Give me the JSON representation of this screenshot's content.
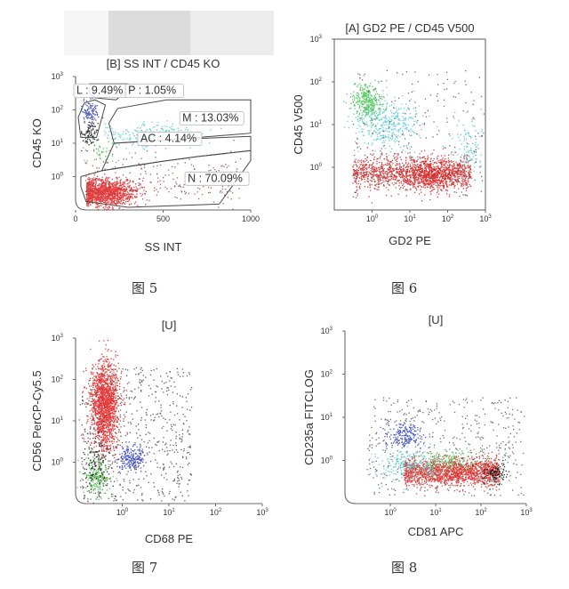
{
  "captions": [
    "图 5",
    "图 6",
    "图 7",
    "图 8"
  ],
  "chart_data": [
    {
      "type": "scatter",
      "title": "[B] SS INT / CD45 KO",
      "xlabel": "SS INT",
      "ylabel": "CD45 KO",
      "x_scale": "linear",
      "y_scale": "log",
      "xlim": [
        0,
        1000
      ],
      "ylim": [
        0.1,
        1000
      ],
      "x_ticks": [
        {
          "v": 0,
          "t": "0"
        },
        {
          "v": 500,
          "t": "500"
        },
        {
          "v": 1000,
          "t": "1000"
        }
      ],
      "y_ticks": [
        {
          "v": 1,
          "t": "10",
          "e": "0"
        },
        {
          "v": 10,
          "t": "10",
          "e": "1"
        },
        {
          "v": 100,
          "t": "10",
          "e": "2"
        },
        {
          "v": 1000,
          "t": "10",
          "e": "3"
        }
      ],
      "gate_labels": [
        {
          "text": "L : 9.49%",
          "x": 5,
          "y": 300
        },
        {
          "text": "P : 1.05%",
          "x": 300,
          "y": 300
        },
        {
          "text": "M : 13.03%",
          "x": 610,
          "y": 45
        },
        {
          "text": "AC : 4.14%",
          "x": 370,
          "y": 11
        },
        {
          "text": "N : 70.09%",
          "x": 640,
          "y": 0.7
        }
      ],
      "gates": [
        {
          "name": "L",
          "points": [
            [
              30,
              15
            ],
            [
              120,
              15
            ],
            [
              170,
              140
            ],
            [
              110,
              200
            ],
            [
              50,
              160
            ],
            [
              15,
              60
            ]
          ]
        },
        {
          "name": "P",
          "points": [
            [
              80,
              600
            ],
            [
              300,
              600
            ],
            [
              330,
              500
            ],
            [
              230,
              200
            ],
            [
              110,
              230
            ],
            [
              80,
              300
            ]
          ]
        },
        {
          "name": "M",
          "points": [
            [
              190,
              40
            ],
            [
              220,
              10
            ],
            [
              560,
              13
            ],
            [
              1000,
              20
            ],
            [
              1000,
              200
            ],
            [
              520,
              200
            ],
            [
              240,
              110
            ]
          ]
        },
        {
          "name": "AC",
          "points": [
            [
              150,
              1.5
            ],
            [
              480,
              2.8
            ],
            [
              700,
              4
            ],
            [
              1000,
              6
            ],
            [
              1000,
              16
            ],
            [
              560,
              13
            ],
            [
              220,
              10
            ]
          ]
        },
        {
          "name": "N",
          "points": [
            [
              30,
              1
            ],
            [
              30,
              0.5
            ],
            [
              60,
              0.18
            ],
            [
              300,
              0.12
            ],
            [
              820,
              0.15
            ],
            [
              1000,
              3
            ],
            [
              1000,
              6
            ],
            [
              700,
              4
            ],
            [
              480,
              2.8
            ],
            [
              150,
              1.5
            ]
          ]
        }
      ],
      "series": [
        {
          "color": "#e11d1d",
          "n": 1300,
          "x": {
            "d": "n",
            "m": 160,
            "s": 90
          },
          "y": {
            "d": "ln",
            "m": 0.35,
            "s": 0.45
          },
          "xmin": 60,
          "xmax": 900
        },
        {
          "color": "#47c5cf",
          "n": 220,
          "x": {
            "d": "n",
            "m": 420,
            "s": 130
          },
          "y": {
            "d": "ln",
            "m": 18,
            "s": 0.4
          },
          "xmin": 160,
          "xmax": 900
        },
        {
          "color": "#3444a8",
          "n": 120,
          "x": {
            "d": "n",
            "m": 80,
            "s": 25
          },
          "y": {
            "d": "ln",
            "m": 90,
            "s": 0.45
          },
          "xmin": 30,
          "xmax": 180
        },
        {
          "color": "#111111",
          "n": 90,
          "x": {
            "d": "n",
            "m": 80,
            "s": 22
          },
          "y": {
            "d": "ln",
            "m": 20,
            "s": 0.5
          },
          "xmin": 30,
          "xmax": 180
        },
        {
          "color": "#3fbf3f",
          "n": 40,
          "x": {
            "d": "n",
            "m": 140,
            "s": 45
          },
          "y": {
            "d": "ln",
            "m": 6,
            "s": 0.6
          },
          "xmin": 40,
          "xmax": 400
        },
        {
          "color": "#8a4a4a",
          "n": 250,
          "x": {
            "d": "u",
            "a": 40,
            "b": 950
          },
          "y": {
            "d": "ln",
            "m": 0.8,
            "s": 0.9
          }
        }
      ]
    },
    {
      "type": "scatter",
      "title": "[A] GD2 PE / CD45 V500",
      "xlabel": "GD2 PE",
      "ylabel": "CD45 V500",
      "x_scale": "log",
      "y_scale": "log",
      "xlim": [
        0.1,
        1000
      ],
      "ylim": [
        0.1,
        1000
      ],
      "x_ticks": [
        {
          "v": 1,
          "t": "10",
          "e": "0"
        },
        {
          "v": 10,
          "t": "10",
          "e": "1"
        },
        {
          "v": 100,
          "t": "10",
          "e": "2"
        },
        {
          "v": 1000,
          "t": "10",
          "e": "3"
        }
      ],
      "y_ticks": [
        {
          "v": 1,
          "t": "10",
          "e": "0"
        },
        {
          "v": 10,
          "t": "10",
          "e": "1"
        },
        {
          "v": 100,
          "t": "10",
          "e": "2"
        },
        {
          "v": 1000,
          "t": "10",
          "e": "3"
        }
      ],
      "gate_labels": [],
      "gates": [],
      "series": [
        {
          "color": "#c22a2a",
          "n": 1300,
          "x": {
            "d": "lu",
            "a": 0.3,
            "b": 400
          },
          "y": {
            "d": "ln",
            "m": 0.75,
            "s": 0.45
          }
        },
        {
          "color": "#e01515",
          "n": 500,
          "x": {
            "d": "ln",
            "m": 40,
            "s": 0.9
          },
          "y": {
            "d": "ln",
            "m": 0.7,
            "s": 0.4
          }
        },
        {
          "color": "#3fc24a",
          "n": 320,
          "x": {
            "d": "ln",
            "m": 0.7,
            "s": 0.45
          },
          "y": {
            "d": "ln",
            "m": 35,
            "s": 0.5
          }
        },
        {
          "color": "#4cc6d0",
          "n": 380,
          "x": {
            "d": "ln",
            "m": 2.5,
            "s": 1.0
          },
          "y": {
            "d": "ln",
            "m": 10,
            "s": 0.7
          }
        },
        {
          "color": "#4cc6d0",
          "n": 120,
          "x": {
            "d": "ln",
            "m": 350,
            "s": 0.6
          },
          "y": {
            "d": "ln",
            "m": 3,
            "s": 0.8
          }
        },
        {
          "color": "#555555",
          "n": 200,
          "x": {
            "d": "lu",
            "a": 0.3,
            "b": 900
          },
          "y": {
            "d": "lu",
            "a": 0.2,
            "b": 200
          }
        }
      ]
    },
    {
      "type": "scatter",
      "title": "[U]",
      "xlabel": "CD68 PE",
      "ylabel": "CD56 PerCP-Cy5.5",
      "x_scale": "log",
      "y_scale": "log",
      "xlim": [
        0.1,
        1000
      ],
      "ylim": [
        0.1,
        1000
      ],
      "x_ticks": [
        {
          "v": 1,
          "t": "10",
          "e": "0"
        },
        {
          "v": 10,
          "t": "10",
          "e": "1"
        },
        {
          "v": 100,
          "t": "10",
          "e": "2"
        },
        {
          "v": 1000,
          "t": "10",
          "e": "3"
        }
      ],
      "y_ticks": [
        {
          "v": 1,
          "t": "10",
          "e": "0"
        },
        {
          "v": 10,
          "t": "10",
          "e": "1"
        },
        {
          "v": 100,
          "t": "10",
          "e": "2"
        },
        {
          "v": 1000,
          "t": "10",
          "e": "3"
        }
      ],
      "gate_labels": [],
      "gates": [],
      "series": [
        {
          "color": "#444444",
          "n": 600,
          "x": {
            "d": "lu",
            "a": 0.12,
            "b": 30
          },
          "y": {
            "d": "lu",
            "a": 0.12,
            "b": 200
          }
        },
        {
          "color": "#e11d1d",
          "n": 1600,
          "x": {
            "d": "ln",
            "m": 0.42,
            "s": 0.35
          },
          "y": {
            "d": "ln",
            "m": 25,
            "s": 1.2
          }
        },
        {
          "color": "#3fbf3f",
          "n": 200,
          "x": {
            "d": "ln",
            "m": 0.28,
            "s": 0.35
          },
          "y": {
            "d": "ln",
            "m": 0.45,
            "s": 0.55
          }
        },
        {
          "color": "#2233cc",
          "n": 180,
          "x": {
            "d": "ln",
            "m": 1.6,
            "s": 0.35
          },
          "y": {
            "d": "ln",
            "m": 1.2,
            "s": 0.35
          }
        },
        {
          "color": "#111111",
          "n": 130,
          "x": {
            "d": "ln",
            "m": 0.28,
            "s": 0.35
          },
          "y": {
            "d": "ln",
            "m": 0.9,
            "s": 0.8
          }
        }
      ]
    },
    {
      "type": "scatter",
      "title": "[U]",
      "xlabel": "CD81 APC",
      "ylabel": "CD235a FITCLOG",
      "x_scale": "log",
      "y_scale": "log",
      "xlim": [
        0.1,
        1000
      ],
      "ylim": [
        0.1,
        1000
      ],
      "x_ticks": [
        {
          "v": 1,
          "t": "10",
          "e": "0"
        },
        {
          "v": 10,
          "t": "10",
          "e": "1"
        },
        {
          "v": 100,
          "t": "10",
          "e": "2"
        },
        {
          "v": 1000,
          "t": "10",
          "e": "3"
        }
      ],
      "y_ticks": [
        {
          "v": 1,
          "t": "10",
          "e": "0"
        },
        {
          "v": 10,
          "t": "10",
          "e": "1"
        },
        {
          "v": 100,
          "t": "10",
          "e": "2"
        },
        {
          "v": 1000,
          "t": "10",
          "e": "3"
        }
      ],
      "gate_labels": [],
      "gates": [],
      "series": [
        {
          "color": "#555555",
          "n": 500,
          "x": {
            "d": "lu",
            "a": 0.3,
            "b": 900
          },
          "y": {
            "d": "lu",
            "a": 0.15,
            "b": 30
          }
        },
        {
          "color": "#e11d1d",
          "n": 1500,
          "x": {
            "d": "lu",
            "a": 2,
            "b": 250
          },
          "y": {
            "d": "ln",
            "m": 0.55,
            "s": 0.35
          }
        },
        {
          "color": "#4cc6d0",
          "n": 250,
          "x": {
            "d": "ln",
            "m": 3,
            "s": 0.9
          },
          "y": {
            "d": "ln",
            "m": 0.8,
            "s": 0.45
          }
        },
        {
          "color": "#3fbf3f",
          "n": 160,
          "x": {
            "d": "ln",
            "m": 20,
            "s": 1.0
          },
          "y": {
            "d": "ln",
            "m": 1.0,
            "s": 0.35
          }
        },
        {
          "color": "#2233cc",
          "n": 170,
          "x": {
            "d": "ln",
            "m": 2,
            "s": 0.45
          },
          "y": {
            "d": "ln",
            "m": 4,
            "s": 0.35
          }
        },
        {
          "color": "#111111",
          "n": 110,
          "x": {
            "d": "ln",
            "m": 200,
            "s": 0.35
          },
          "y": {
            "d": "ln",
            "m": 0.5,
            "s": 0.25
          }
        }
      ]
    }
  ]
}
